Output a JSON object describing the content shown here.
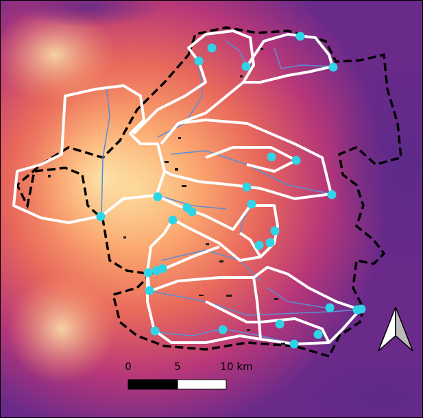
{
  "scale_bar": {
    "labels": [
      "0",
      "5",
      "10 km"
    ]
  }
}
